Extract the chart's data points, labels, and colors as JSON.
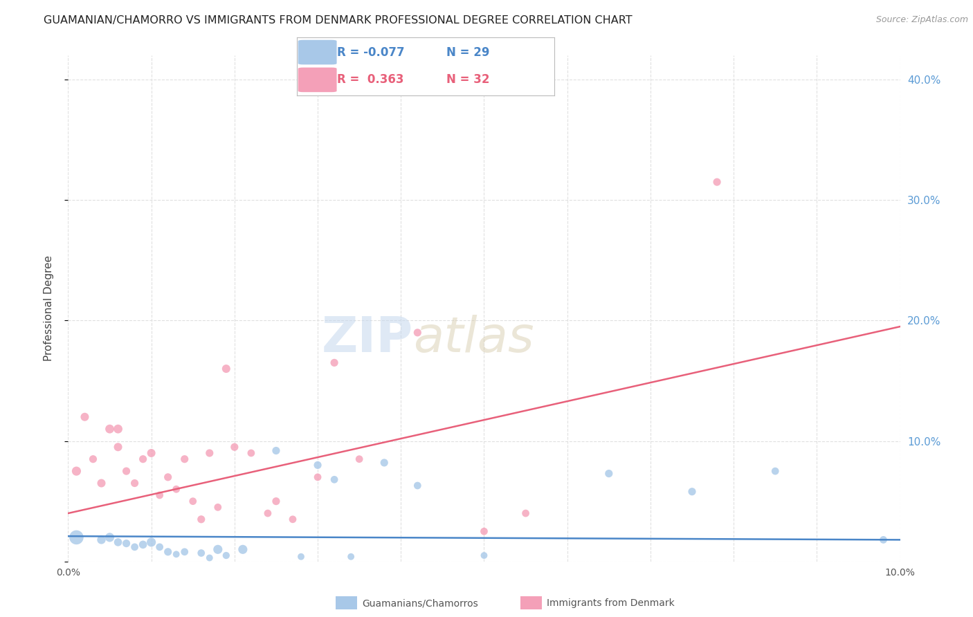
{
  "title": "GUAMANIAN/CHAMORRO VS IMMIGRANTS FROM DENMARK PROFESSIONAL DEGREE CORRELATION CHART",
  "source": "Source: ZipAtlas.com",
  "ylabel": "Professional Degree",
  "xlim": [
    0.0,
    0.1
  ],
  "ylim": [
    0.0,
    0.42
  ],
  "blue_color": "#a8c8e8",
  "pink_color": "#f4a0b8",
  "blue_line_color": "#4a86c8",
  "pink_line_color": "#e8607a",
  "right_axis_color": "#5b9bd5",
  "legend_blue_label": "Guamanians/Chamorros",
  "legend_pink_label": "Immigrants from Denmark",
  "R_blue": -0.077,
  "N_blue": 29,
  "R_pink": 0.363,
  "N_pink": 32,
  "blue_intercept": 0.021,
  "blue_slope": -0.03,
  "pink_intercept": 0.04,
  "pink_slope": 1.55,
  "blue_scatter_x": [
    0.001,
    0.004,
    0.005,
    0.006,
    0.007,
    0.008,
    0.009,
    0.01,
    0.011,
    0.012,
    0.013,
    0.014,
    0.016,
    0.017,
    0.018,
    0.019,
    0.021,
    0.025,
    0.028,
    0.03,
    0.032,
    0.034,
    0.038,
    0.042,
    0.05,
    0.065,
    0.075,
    0.085,
    0.098
  ],
  "blue_scatter_y": [
    0.02,
    0.018,
    0.02,
    0.016,
    0.015,
    0.012,
    0.014,
    0.016,
    0.012,
    0.008,
    0.006,
    0.008,
    0.007,
    0.003,
    0.01,
    0.005,
    0.01,
    0.092,
    0.004,
    0.08,
    0.068,
    0.004,
    0.082,
    0.063,
    0.005,
    0.073,
    0.058,
    0.075,
    0.018
  ],
  "blue_scatter_size": [
    220,
    80,
    90,
    70,
    65,
    60,
    70,
    90,
    60,
    65,
    50,
    60,
    60,
    50,
    90,
    55,
    90,
    65,
    50,
    65,
    60,
    50,
    65,
    60,
    50,
    65,
    65,
    60,
    60
  ],
  "pink_scatter_x": [
    0.001,
    0.002,
    0.003,
    0.004,
    0.005,
    0.006,
    0.006,
    0.007,
    0.008,
    0.009,
    0.01,
    0.011,
    0.012,
    0.013,
    0.014,
    0.015,
    0.016,
    0.017,
    0.018,
    0.019,
    0.02,
    0.022,
    0.024,
    0.025,
    0.027,
    0.03,
    0.032,
    0.035,
    0.042,
    0.05,
    0.055,
    0.078
  ],
  "pink_scatter_y": [
    0.075,
    0.12,
    0.085,
    0.065,
    0.11,
    0.095,
    0.11,
    0.075,
    0.065,
    0.085,
    0.09,
    0.055,
    0.07,
    0.06,
    0.085,
    0.05,
    0.035,
    0.09,
    0.045,
    0.16,
    0.095,
    0.09,
    0.04,
    0.05,
    0.035,
    0.07,
    0.165,
    0.085,
    0.19,
    0.025,
    0.04,
    0.315
  ],
  "pink_scatter_size": [
    90,
    75,
    65,
    75,
    85,
    75,
    85,
    65,
    65,
    65,
    75,
    60,
    65,
    60,
    65,
    60,
    65,
    65,
    60,
    75,
    65,
    60,
    60,
    65,
    60,
    60,
    65,
    60,
    65,
    60,
    60,
    65
  ],
  "watermark_zip": "ZIP",
  "watermark_atlas": "atlas",
  "background_color": "#ffffff",
  "grid_color": "#e0e0e0"
}
